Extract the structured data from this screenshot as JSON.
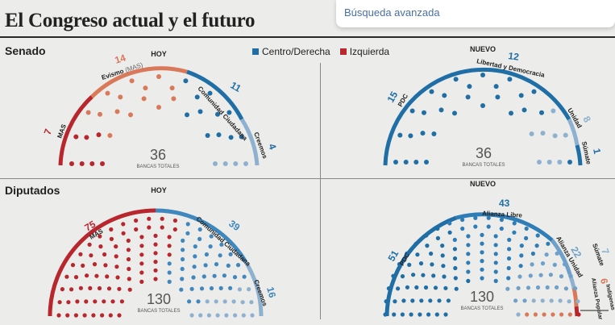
{
  "title": "El Congreso actual y el futuro",
  "search_popup": {
    "text": "Búsqueda avanzada"
  },
  "legend": [
    {
      "label": "Centro/Derecha",
      "color": "#1f6ea6"
    },
    {
      "label": "Izquierda",
      "color": "#b8262e"
    }
  ],
  "senado": {
    "label": "Senado",
    "hoy": {
      "heading": "HOY",
      "total": "36",
      "total_label": "BANCAS TOTALES",
      "groups": [
        {
          "name": "MAS",
          "seats": "7",
          "color": "#b8262e"
        },
        {
          "name": "Evismo",
          "note": "(MAS)",
          "seats": "14",
          "color": "#d9795a"
        },
        {
          "name": "Comunidad Ciudadana",
          "seats": "11",
          "color": "#1f6ea6"
        },
        {
          "name": "Creemos",
          "seats": "4",
          "color": "#8fb1d0"
        }
      ]
    },
    "nuevo": {
      "heading": "NUEVO",
      "total": "36",
      "total_label": "BANCAS TOTALES",
      "groups": [
        {
          "name": "PDC",
          "seats": "15",
          "color": "#1f6ea6"
        },
        {
          "name": "Libertad y Democracia",
          "seats": "12",
          "color": "#1f6ea6"
        },
        {
          "name": "Unidad",
          "seats": "8",
          "color": "#8fb1d0"
        },
        {
          "name": "Súmate",
          "seats": "1",
          "color": "#1f6ea6"
        }
      ]
    }
  },
  "diputados": {
    "label": "Diputados",
    "hoy": {
      "heading": "HOY",
      "total": "130",
      "total_label": "BANCAS TOTALES",
      "groups": [
        {
          "name": "MAS",
          "seats": "75",
          "color": "#b8262e"
        },
        {
          "name": "Comunidad Ciudadana",
          "seats": "39",
          "color": "#3f87bd"
        },
        {
          "name": "Creemos",
          "seats": "16",
          "color": "#8fb1d0"
        }
      ]
    },
    "nuevo": {
      "heading": "NUEVO",
      "total": "130",
      "total_label": "BANCAS TOTALES",
      "groups": [
        {
          "name": "PDC",
          "seats": "51",
          "color": "#1f6ea6"
        },
        {
          "name": "Alianza Libre",
          "seats": "43",
          "color": "#2f7db7"
        },
        {
          "name": "Alianza Unidad",
          "seats": "22",
          "color": "#6fa0c9"
        },
        {
          "name": "Súmate",
          "seats": "7",
          "color": "#8fb1d0"
        },
        {
          "name": "Alianza Popular",
          "seats": "6",
          "color": "#d9795a"
        },
        {
          "name": "Indígenas",
          "seats": "1",
          "color": "#b8262e"
        }
      ]
    }
  }
}
